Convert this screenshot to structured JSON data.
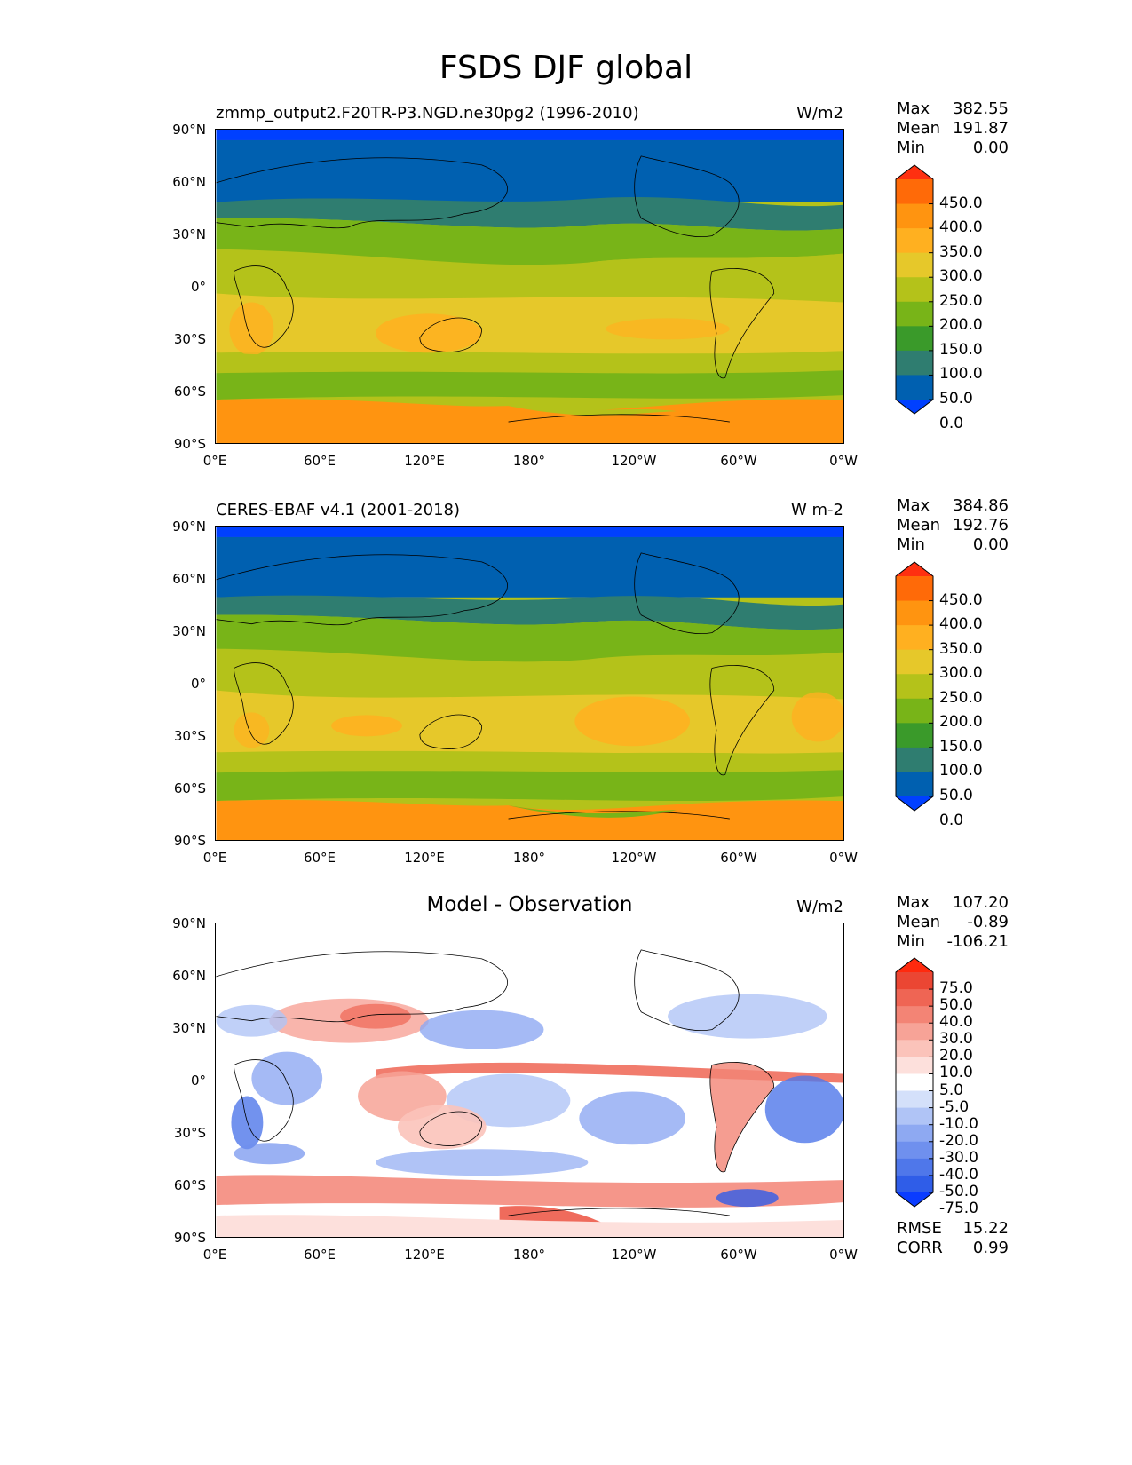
{
  "figure_title": "FSDS DJF global",
  "panels": [
    {
      "id": "model",
      "title_left": "zmmp_output2.F20TR-P3.NGD.ne30pg2 (1996-2010)",
      "title_center": "",
      "units": "W/m2",
      "stats": [
        {
          "label": "Max",
          "value": "382.55"
        },
        {
          "label": "Mean",
          "value": "191.87"
        },
        {
          "label": "Min",
          "value": "0.00"
        }
      ],
      "colorbar": {
        "labels": [
          "450.0",
          "400.0",
          "350.0",
          "300.0",
          "250.0",
          "200.0",
          "150.0",
          "100.0",
          "50.0",
          "0.0"
        ],
        "colors": [
          "#0040ff",
          "#0060b0",
          "#2f7d70",
          "#3a9a2a",
          "#78b418",
          "#b4c21a",
          "#e6c82a",
          "#ffb020",
          "#ff9410",
          "#ff6a08",
          "#ff3010"
        ]
      }
    },
    {
      "id": "obs",
      "title_left": "CERES-EBAF v4.1 (2001-2018)",
      "title_center": "",
      "units": "W m-2",
      "stats": [
        {
          "label": "Max",
          "value": "384.86"
        },
        {
          "label": "Mean",
          "value": "192.76"
        },
        {
          "label": "Min",
          "value": "0.00"
        }
      ],
      "colorbar": {
        "labels": [
          "450.0",
          "400.0",
          "350.0",
          "300.0",
          "250.0",
          "200.0",
          "150.0",
          "100.0",
          "50.0",
          "0.0"
        ],
        "colors": [
          "#0040ff",
          "#0060b0",
          "#2f7d70",
          "#3a9a2a",
          "#78b418",
          "#b4c21a",
          "#e6c82a",
          "#ffb020",
          "#ff9410",
          "#ff6a08",
          "#ff3010"
        ]
      }
    },
    {
      "id": "diff",
      "title_left": "",
      "title_center": "Model - Observation",
      "units": "W/m2",
      "stats": [
        {
          "label": "Max",
          "value": "107.20"
        },
        {
          "label": "Mean",
          "value": "-0.89"
        },
        {
          "label": "Min",
          "value": "-106.21"
        }
      ],
      "bottom_stats": [
        {
          "label": "RMSE",
          "value": "15.22"
        },
        {
          "label": "CORR",
          "value": "0.99"
        }
      ],
      "colorbar": {
        "labels": [
          "75.0",
          "50.0",
          "40.0",
          "30.0",
          "20.0",
          "10.0",
          "5.0",
          "-5.0",
          "-10.0",
          "-20.0",
          "-30.0",
          "-40.0",
          "-50.0",
          "-75.0"
        ],
        "colors": [
          "#0a3cff",
          "#2f5de8",
          "#4f77ea",
          "#6f90ee",
          "#8ea9f2",
          "#b0c4f6",
          "#d4e0fa",
          "#ffffff",
          "#fde0dc",
          "#fbc3ba",
          "#f7a397",
          "#f38475",
          "#ef6554",
          "#eb4633",
          "#ff2a0e"
        ]
      }
    }
  ],
  "axes": {
    "lat_ticks": [
      "90°N",
      "60°N",
      "30°N",
      "0°",
      "30°S",
      "60°S",
      "90°S"
    ],
    "lon_ticks": [
      "0°E",
      "60°E",
      "120°E",
      "180°",
      "120°W",
      "60°W",
      "0°W"
    ]
  }
}
